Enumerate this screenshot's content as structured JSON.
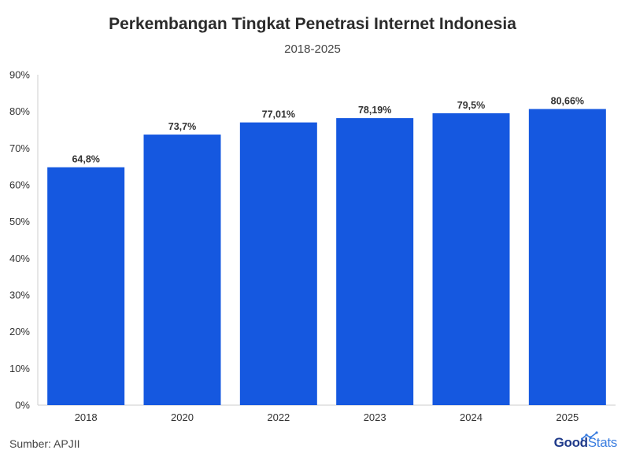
{
  "title": "Perkembangan Tingkat Penetrasi Internet Indonesia",
  "subtitle": "2018-2025",
  "source": "Sumber: APJII",
  "logo": {
    "part1": "Good",
    "part2": "Stats"
  },
  "colors": {
    "bar": "#1558e0",
    "axis": "#cccccc",
    "text": "#333333",
    "logo_dark": "#1f3a8a",
    "logo_light": "#3a7de0"
  },
  "chart_data": {
    "type": "bar",
    "title": "Perkembangan Tingkat Penetrasi Internet Indonesia",
    "subtitle": "2018-2025",
    "categories": [
      "2018",
      "2020",
      "2022",
      "2023",
      "2024",
      "2025"
    ],
    "values": [
      64.8,
      73.7,
      77.01,
      78.19,
      79.5,
      80.66
    ],
    "value_labels": [
      "64,8%",
      "73,7%",
      "77,01%",
      "78,19%",
      "79,5%",
      "80,66%"
    ],
    "ylim": [
      0,
      90
    ],
    "yticks": [
      0,
      10,
      20,
      30,
      40,
      50,
      60,
      70,
      80,
      90
    ],
    "ytick_labels": [
      "0%",
      "10%",
      "20%",
      "30%",
      "40%",
      "50%",
      "60%",
      "70%",
      "80%",
      "90%"
    ],
    "grid": false,
    "xlabel": "",
    "ylabel": ""
  }
}
